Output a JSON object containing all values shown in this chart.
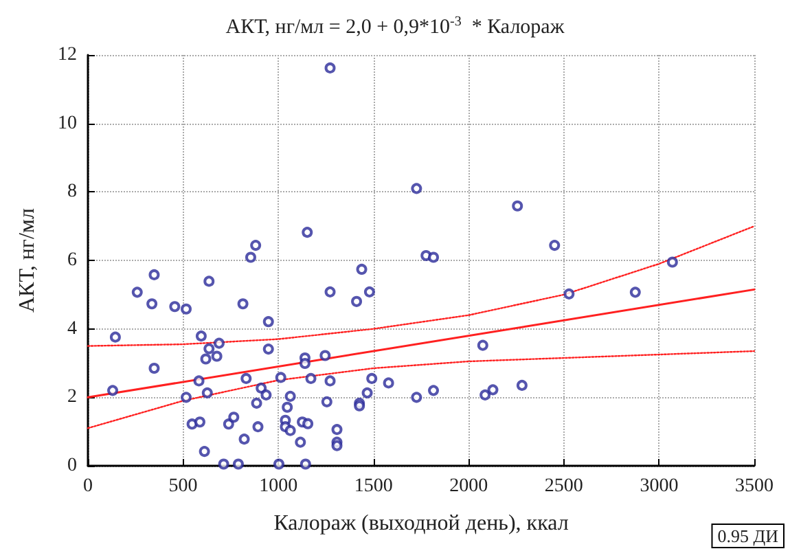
{
  "chart_data": {
    "type": "scatter",
    "title": "АКТ, нг/мл = 2,0 + 0,9*10$^{-3}$  * Калораж",
    "xlabel": "Калораж (выходной день), ккал",
    "ylabel": "АКТ, нг/мл",
    "xlim": [
      0,
      3500
    ],
    "xticks": [
      0,
      500,
      1000,
      1500,
      2000,
      2500,
      3000,
      3500
    ],
    "ylim": [
      0,
      12
    ],
    "yticks": [
      0,
      2,
      4,
      6,
      8,
      10,
      12
    ],
    "grid": true,
    "marker": "circle",
    "annotations": [
      "0.95 ДИ"
    ],
    "series": [
      {
        "type": "scatter",
        "color": "#2b2b9a",
        "x": [
          1272,
          1726,
          1152,
          881,
          855,
          348,
          1438,
          636,
          259,
          1272,
          336,
          814,
          1411,
          1479,
          456,
          516,
          948,
          144,
          595,
          636,
          689,
          619,
          677,
          948,
          348,
          1140,
          1140,
          1246,
          130,
          583,
          831,
          1013,
          1171,
          1272,
          1491,
          1579,
          516,
          627,
          910,
          936,
          1063,
          1467,
          1726,
          886,
          1255,
          1426,
          1426,
          1047,
          547,
          588,
          739,
          766,
          893,
          1037,
          1037,
          1063,
          1126,
          1155,
          821,
          612,
          1116,
          1308,
          1308,
          1308,
          713,
          790,
          1003,
          1143,
          2256,
          1776,
          1815,
          2451,
          3070,
          2527,
          2875,
          2074,
          1815,
          2086,
          2127,
          2280
        ],
        "values": [
          11.62,
          8.1,
          6.82,
          6.44,
          6.09,
          5.58,
          5.74,
          5.39,
          5.07,
          5.08,
          4.73,
          4.73,
          4.8,
          5.08,
          4.65,
          4.58,
          4.21,
          3.76,
          3.79,
          3.42,
          3.58,
          3.12,
          3.2,
          3.41,
          2.85,
          3.15,
          2.99,
          3.22,
          2.2,
          2.48,
          2.55,
          2.58,
          2.55,
          2.48,
          2.55,
          2.42,
          2.0,
          2.13,
          2.27,
          2.07,
          2.03,
          2.13,
          2.0,
          1.83,
          1.87,
          1.83,
          1.75,
          1.71,
          1.22,
          1.28,
          1.22,
          1.42,
          1.14,
          1.33,
          1.14,
          1.03,
          1.28,
          1.23,
          0.78,
          0.42,
          0.69,
          1.06,
          0.69,
          0.59,
          0.05,
          0.05,
          0.05,
          0.05,
          7.59,
          6.14,
          6.09,
          6.44,
          5.95,
          5.02,
          5.07,
          3.52,
          2.2,
          2.07,
          2.22,
          2.35
        ]
      },
      {
        "type": "line",
        "color": "#ff2020",
        "line_style": "solid",
        "marker": "none",
        "x": [
          0,
          3500
        ],
        "values": [
          2.0,
          5.15
        ]
      },
      {
        "type": "line",
        "color": "#ff2020",
        "line_style": "dotted",
        "marker": "none",
        "x": [
          0,
          500,
          1000,
          1500,
          2000,
          2500,
          3000,
          3500
        ],
        "values": [
          3.5,
          3.55,
          3.7,
          4.0,
          4.4,
          5.0,
          5.9,
          7.0
        ]
      },
      {
        "type": "line",
        "color": "#ff2020",
        "line_style": "dotted",
        "marker": "none",
        "x": [
          0,
          500,
          1000,
          1500,
          2000,
          2500,
          3000,
          3500
        ],
        "values": [
          1.1,
          1.9,
          2.5,
          2.85,
          3.05,
          3.15,
          3.25,
          3.35
        ]
      }
    ]
  }
}
